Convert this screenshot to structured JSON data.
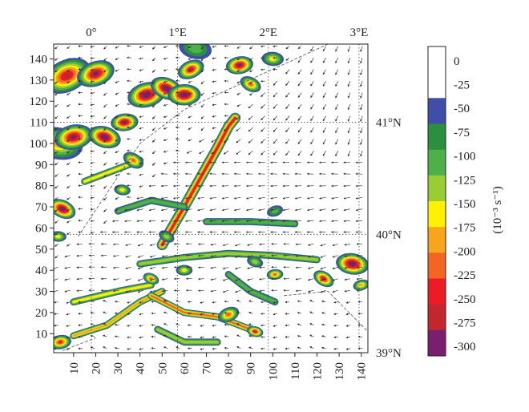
{
  "chart_data": {
    "type": "heatmap",
    "title": "",
    "xlabel": "",
    "ylabel": "",
    "x_ticks": [
      10,
      20,
      30,
      40,
      50,
      60,
      70,
      80,
      90,
      100,
      110,
      120,
      130,
      140
    ],
    "y_ticks": [
      10,
      20,
      30,
      40,
      50,
      60,
      70,
      80,
      90,
      100,
      110,
      120,
      130,
      140
    ],
    "xlim": [
      1,
      143
    ],
    "ylim": [
      1,
      147
    ],
    "lon_labels": [
      {
        "label": "0°",
        "x": 18
      },
      {
        "label": "1°E",
        "x": 57
      },
      {
        "label": "2°E",
        "x": 98
      },
      {
        "label": "3°E",
        "x": 139
      }
    ],
    "lat_labels": [
      {
        "label": "41°N",
        "y": 110
      },
      {
        "label": "40°N",
        "y": 57
      },
      {
        "label": "39°N",
        "y": 1
      }
    ],
    "colorbar": {
      "label": "(10⁻³ s⁻¹)",
      "ticks": [
        "0",
        "-25",
        "-50",
        "-75",
        "-100",
        "-125",
        "-150",
        "-175",
        "-200",
        "-225",
        "-250",
        "-275",
        "-300"
      ],
      "colors": [
        "#ffffff",
        "#ffffff",
        "#3f4ea8",
        "#2a8f3e",
        "#4db04a",
        "#9acd32",
        "#fff200",
        "#f7a51c",
        "#f26522",
        "#ed1c24",
        "#c1272d",
        "#7a1f6e"
      ]
    },
    "patches": [
      {
        "x": 7,
        "y": 132,
        "r": 9,
        "v": -250
      },
      {
        "x": 3,
        "y": 100,
        "r": 9,
        "v": -175
      },
      {
        "x": 10,
        "y": 103,
        "r": 7,
        "v": -275
      },
      {
        "x": 5,
        "y": 69,
        "r": 5,
        "v": -300
      },
      {
        "x": 3,
        "y": 56,
        "r": 3,
        "v": -150
      },
      {
        "x": 20,
        "y": 133,
        "r": 7,
        "v": -275
      },
      {
        "x": 24,
        "y": 103,
        "r": 6,
        "v": -300
      },
      {
        "x": 33,
        "y": 110,
        "r": 5,
        "v": -275
      },
      {
        "x": 37,
        "y": 92,
        "r": 4,
        "v": -200
      },
      {
        "x": 32,
        "y": 78,
        "r": 3,
        "v": -150
      },
      {
        "x": 43,
        "y": 123,
        "r": 7,
        "v": -300
      },
      {
        "x": 52,
        "y": 126,
        "r": 6,
        "v": -300
      },
      {
        "x": 60,
        "y": 123,
        "r": 6,
        "v": -300
      },
      {
        "x": 63,
        "y": 135,
        "r": 5,
        "v": -250
      },
      {
        "x": 65,
        "y": 145,
        "r": 6,
        "v": -100
      },
      {
        "x": 85,
        "y": 137,
        "r": 5,
        "v": -275
      },
      {
        "x": 90,
        "y": 128,
        "r": 4,
        "v": -200
      },
      {
        "x": 100,
        "y": 140,
        "r": 4,
        "v": -150
      },
      {
        "x": 101,
        "y": 68,
        "r": 3,
        "v": -100
      },
      {
        "x": 92,
        "y": 44,
        "r": 3,
        "v": -125
      },
      {
        "x": 101,
        "y": 38,
        "r": 3,
        "v": -200
      },
      {
        "x": 123,
        "y": 36,
        "r": 4,
        "v": -250
      },
      {
        "x": 136,
        "y": 43,
        "r": 6,
        "v": -300
      },
      {
        "x": 140,
        "y": 33,
        "r": 3,
        "v": -175
      },
      {
        "x": 45,
        "y": 36,
        "r": 3,
        "v": -200
      },
      {
        "x": 60,
        "y": 40,
        "r": 3,
        "v": -150
      },
      {
        "x": 80,
        "y": 19,
        "r": 4,
        "v": -200
      },
      {
        "x": 92,
        "y": 11,
        "r": 3,
        "v": -250
      },
      {
        "x": 4,
        "y": 6,
        "r": 4,
        "v": -225
      },
      {
        "x": 52,
        "y": 56,
        "r": 3,
        "v": -125
      }
    ],
    "bands": [
      {
        "points": [
          [
            50,
            52
          ],
          [
            60,
            70
          ],
          [
            68,
            85
          ],
          [
            75,
            98
          ],
          [
            80,
            108
          ],
          [
            83,
            112
          ]
        ],
        "w": 3,
        "v": -225
      },
      {
        "points": [
          [
            40,
            43
          ],
          [
            60,
            46
          ],
          [
            80,
            48
          ],
          [
            100,
            47
          ],
          [
            120,
            45
          ]
        ],
        "w": 2,
        "v": -125
      },
      {
        "points": [
          [
            30,
            68
          ],
          [
            45,
            73
          ],
          [
            60,
            70
          ]
        ],
        "w": 2,
        "v": -100
      },
      {
        "points": [
          [
            70,
            63
          ],
          [
            90,
            63
          ],
          [
            110,
            62
          ]
        ],
        "w": 2,
        "v": -100
      },
      {
        "points": [
          [
            10,
            25
          ],
          [
            30,
            30
          ],
          [
            45,
            33
          ]
        ],
        "w": 2,
        "v": -150
      },
      {
        "points": [
          [
            10,
            9
          ],
          [
            25,
            14
          ],
          [
            40,
            25
          ],
          [
            50,
            30
          ]
        ],
        "w": 2,
        "v": -175
      },
      {
        "points": [
          [
            45,
            28
          ],
          [
            60,
            20
          ],
          [
            75,
            18
          ],
          [
            90,
            12
          ]
        ],
        "w": 2,
        "v": -200
      },
      {
        "points": [
          [
            48,
            12
          ],
          [
            60,
            6
          ],
          [
            75,
            6
          ]
        ],
        "w": 2,
        "v": -125
      },
      {
        "points": [
          [
            80,
            38
          ],
          [
            90,
            30
          ],
          [
            101,
            25
          ]
        ],
        "w": 2,
        "v": -100
      },
      {
        "points": [
          [
            15,
            82
          ],
          [
            30,
            88
          ],
          [
            40,
            92
          ]
        ],
        "w": 2,
        "v": -150
      }
    ],
    "flow": {
      "description_free": true
    }
  }
}
